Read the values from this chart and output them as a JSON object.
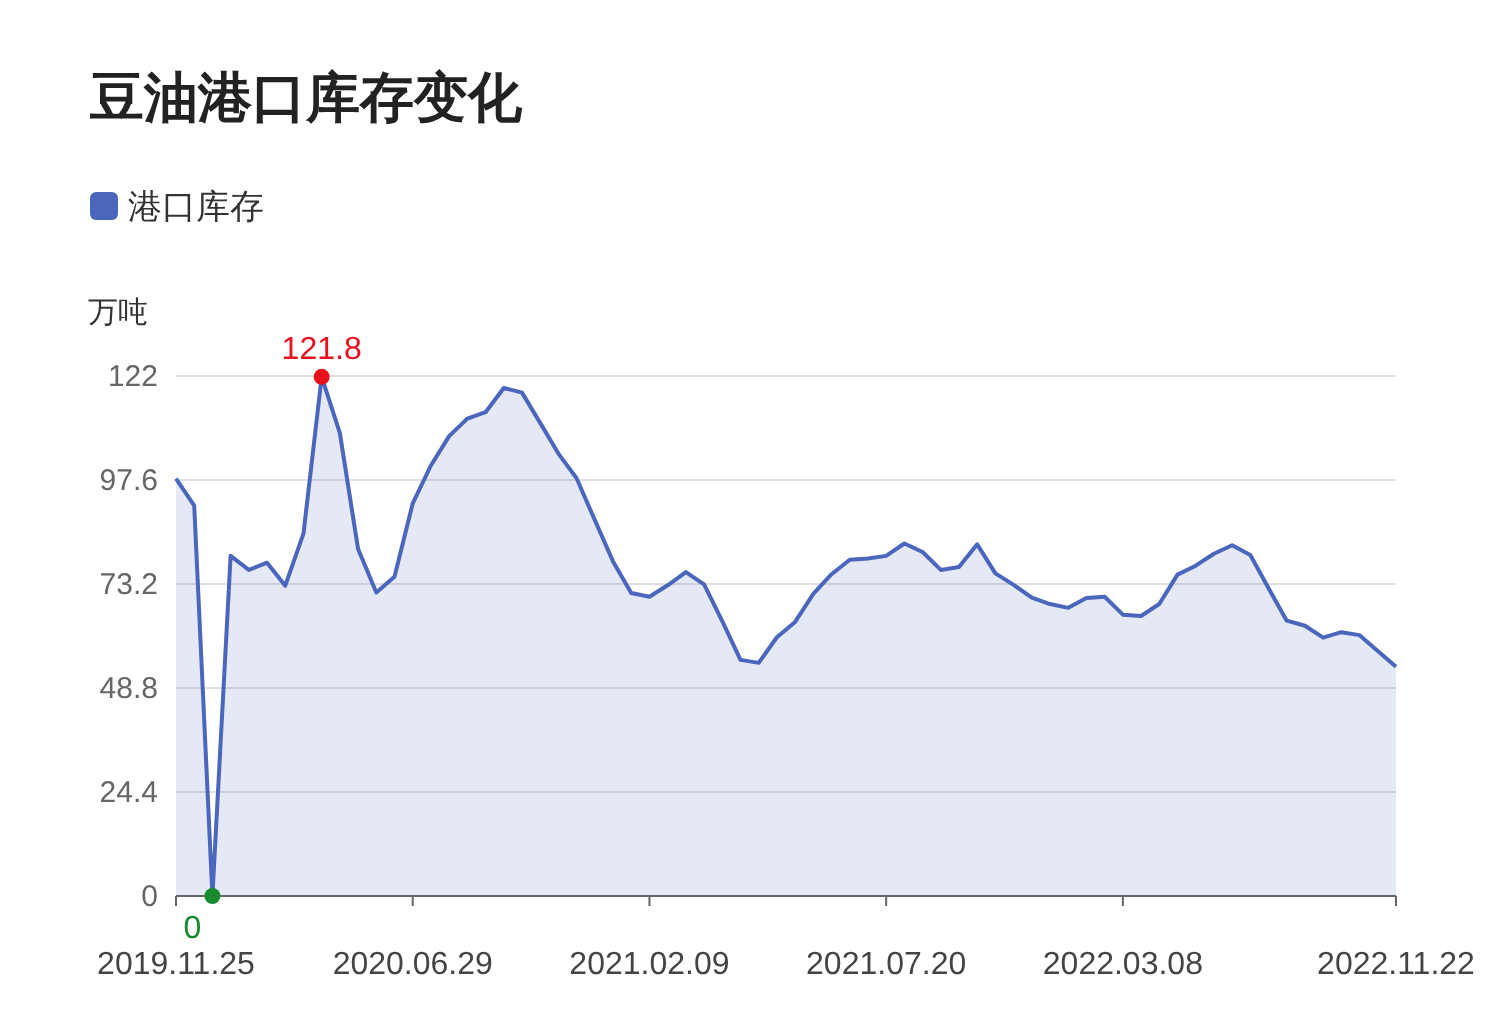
{
  "chart_data": {
    "type": "area",
    "title": "豆油港口库存变化",
    "ylabel": "万吨",
    "categories": [
      "2019.11.25",
      null,
      null,
      null,
      null,
      null,
      null,
      null,
      null,
      null,
      null,
      null,
      null,
      "2020.06.29",
      null,
      null,
      null,
      null,
      null,
      null,
      null,
      null,
      null,
      null,
      null,
      null,
      "2021.02.09",
      null,
      null,
      null,
      null,
      null,
      null,
      null,
      null,
      null,
      null,
      null,
      null,
      "2021.07.20",
      null,
      null,
      null,
      null,
      null,
      null,
      null,
      null,
      null,
      null,
      null,
      null,
      "2022.03.08",
      null,
      null,
      null,
      null,
      null,
      null,
      null,
      null,
      null,
      null,
      null,
      null,
      null,
      null,
      "2022.11.22"
    ],
    "series": [
      {
        "name": "港口库存",
        "color": "#4a66bd",
        "values": [
          97.9,
          91.6,
          0,
          79.8,
          76.5,
          78.2,
          72.8,
          85.0,
          121.8,
          108.6,
          81.4,
          71.2,
          74.9,
          92.1,
          101.0,
          107.9,
          112.0,
          113.5,
          119.2,
          118.1,
          111.0,
          103.8,
          98.0,
          88.2,
          78.5,
          71.1,
          70.2,
          72.9,
          76.0,
          73.1,
          64.5,
          55.4,
          54.7,
          60.7,
          64.3,
          70.9,
          75.5,
          78.9,
          79.2,
          79.8,
          82.7,
          80.7,
          76.5,
          77.2,
          82.5,
          75.7,
          73.0,
          70.0,
          68.5,
          67.6,
          69.9,
          70.2,
          66.0,
          65.7,
          68.5,
          75.4,
          77.5,
          80.3,
          82.3,
          80.0,
          72.2,
          64.6,
          63.4,
          60.6,
          61.9,
          61.2,
          57.5,
          53.8
        ],
        "value_labels": [
          null,
          null,
          "0",
          null,
          null,
          null,
          null,
          null,
          "121.8",
          null,
          null,
          null,
          null,
          null,
          null,
          null,
          null,
          null,
          null,
          null,
          null,
          null,
          null,
          null,
          null,
          null,
          null,
          null,
          null,
          null,
          null,
          null,
          null,
          null,
          null,
          null,
          null,
          null,
          null,
          null,
          null,
          null,
          null,
          null,
          null,
          null,
          null,
          null,
          null,
          null,
          null,
          null,
          null,
          null,
          null,
          null,
          null,
          null,
          null,
          null,
          null,
          null,
          null,
          null,
          null,
          null,
          null,
          null
        ]
      }
    ],
    "ylim": [
      0,
      122
    ],
    "yticks": [
      0,
      24.4,
      48.8,
      73.2,
      97.6,
      122
    ],
    "grid": "y",
    "legend": "top left"
  }
}
